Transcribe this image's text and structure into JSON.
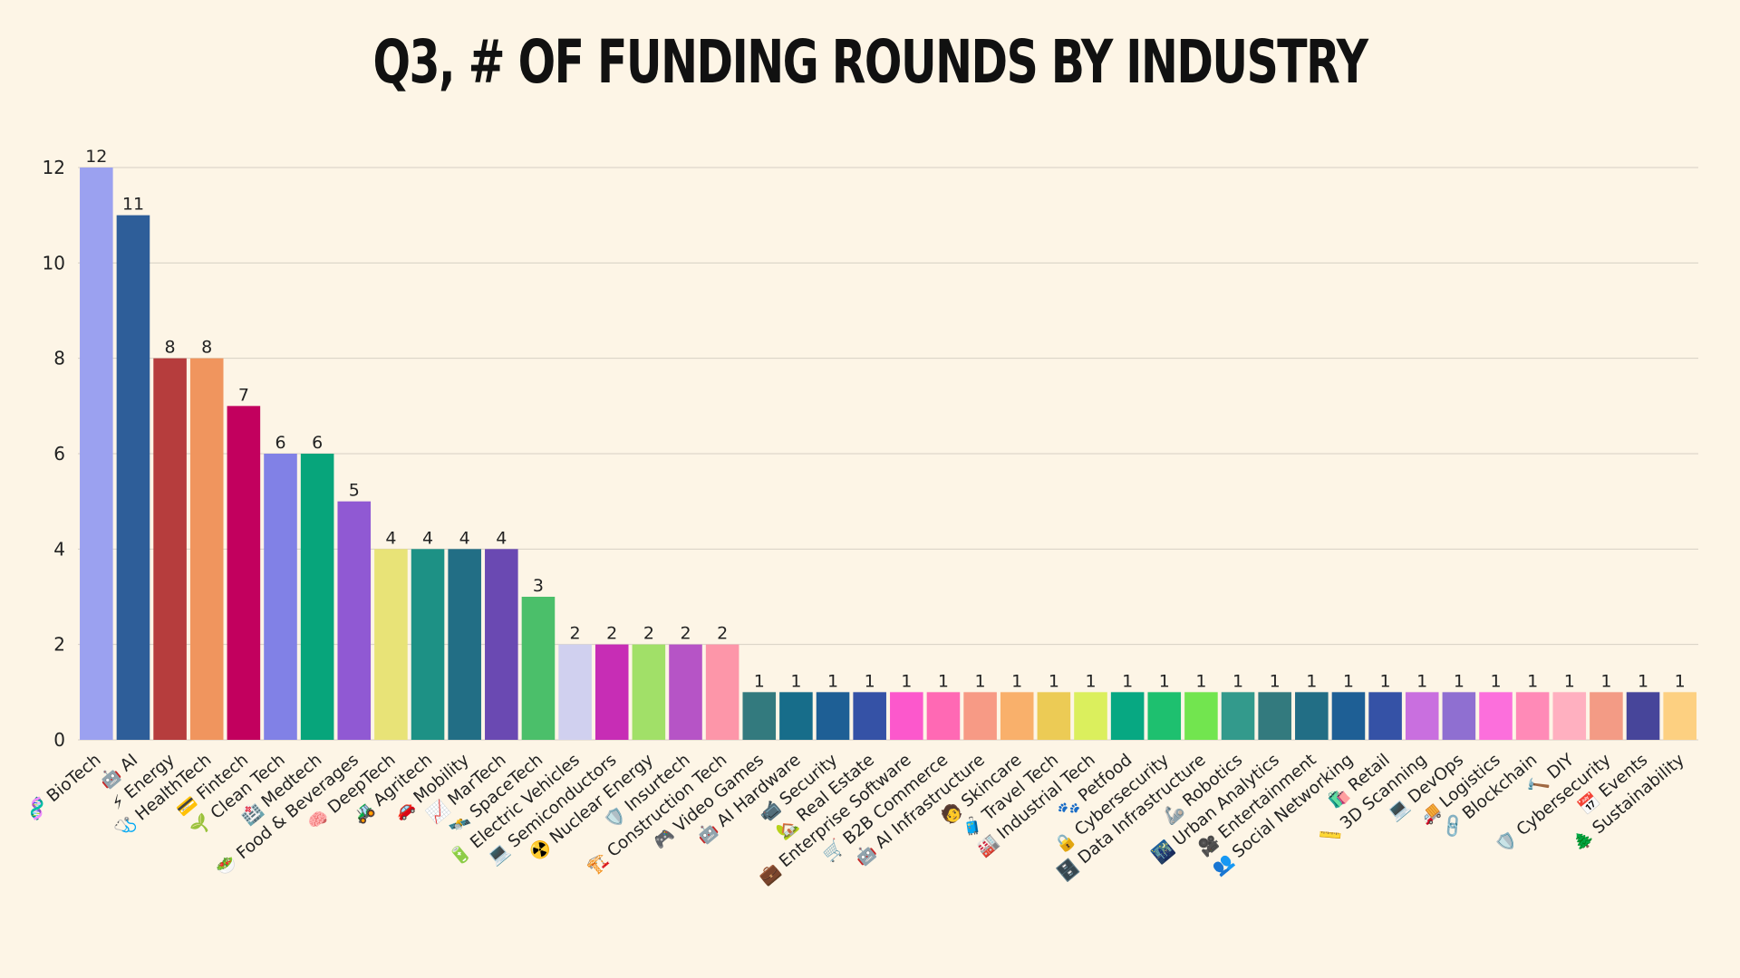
{
  "chart_data": {
    "type": "bar",
    "title": "Q3, # OF FUNDING ROUNDS BY INDUSTRY",
    "xlabel": "",
    "ylabel": "",
    "ylim": [
      0,
      12
    ],
    "yticks": [
      0,
      2,
      4,
      6,
      8,
      10,
      12
    ],
    "grid": true,
    "categories": [
      "🧬 BioTech",
      "🤖 AI",
      "⚡ Energy",
      "🩺 HealthTech",
      "💳 Fintech",
      "🌱 Clean Tech",
      "🏥 Medtech",
      "🥗 Food & Beverages",
      "🧠 DeepTech",
      "🚜 Agritech",
      "🚗 Mobility",
      "📈 MarTech",
      "🛰️ SpaceTech",
      "🔋 Electric Vehicles",
      "💻 Semiconductors",
      "☢️ Nuclear Energy",
      "🛡️ Insurtech",
      "🏗️ Construction Tech",
      "🎮 Video Games",
      "🤖 AI Hardware",
      "📹 Security",
      "🏡 Real Estate",
      "💼 Enterprise Software",
      "🛒 B2B Commerce",
      "🤖 AI Infrastructure",
      "🧑 Skincare",
      "🧳 Travel Tech",
      "🏭 Industrial Tech",
      "🐾 Petfood",
      "🔒 Cybersecurity",
      "🗄️ Data Infrastructure",
      "🦾 Robotics",
      "🌃 Urban Analytics",
      "🎥 Entertainment",
      "👥 Social Networking",
      "🛍️ Retail",
      "📏 3D Scanning",
      "💻 DevOps",
      "🚚 Logistics",
      "🔗 Blockchain",
      "🔨 DIY",
      "🛡️ Cybersecurity",
      "📅 Events",
      "🌲 Sustainability"
    ],
    "values": [
      12,
      11,
      8,
      8,
      7,
      6,
      6,
      5,
      4,
      4,
      4,
      4,
      3,
      2,
      2,
      2,
      2,
      2,
      1,
      1,
      1,
      1,
      1,
      1,
      1,
      1,
      1,
      1,
      1,
      1,
      1,
      1,
      1,
      1,
      1,
      1,
      1,
      1,
      1,
      1,
      1,
      1,
      1,
      1
    ],
    "colors": [
      "#9ba1f0",
      "#2e5e99",
      "#b63d3d",
      "#f0955e",
      "#c2005e",
      "#8181e6",
      "#07a57b",
      "#9059d3",
      "#e8e377",
      "#1d9185",
      "#226e85",
      "#6a49b2",
      "#4bbf6a",
      "#d0d0ef",
      "#c72db5",
      "#a1e068",
      "#b654c6",
      "#fd96a9",
      "#337a7e",
      "#176d8a",
      "#1e5f95",
      "#3552a6",
      "#fc58cc",
      "#ff69b4",
      "#f79a85",
      "#f9b06b",
      "#eccb55",
      "#dbef5d",
      "#07a882",
      "#1ec06f",
      "#72e54f",
      "#339a8c",
      "#337a7e",
      "#226e85",
      "#1e5f95",
      "#3552a6",
      "#c96fdf",
      "#8f6fd1",
      "#fc6fdc",
      "#ff8ab7",
      "#ffb0c0",
      "#f39b85",
      "#47459a",
      "#fdd081"
    ]
  }
}
